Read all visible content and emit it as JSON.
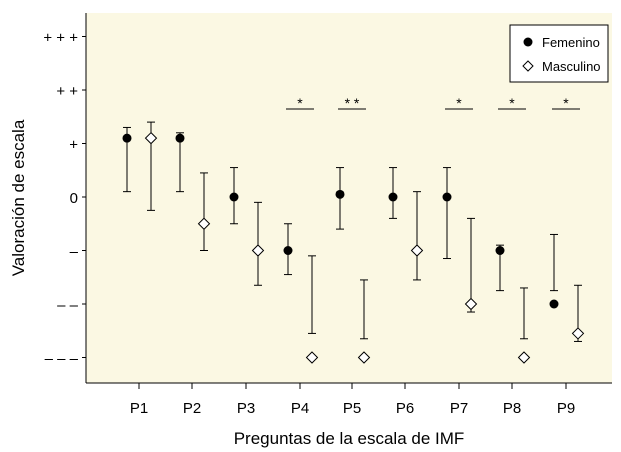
{
  "chart_data": {
    "type": "scatter",
    "xlabel": "Preguntas de la escala de IMF",
    "ylabel": "Valoración de escala",
    "categories": [
      "P1",
      "P2",
      "P3",
      "P4",
      "P5",
      "P6",
      "P7",
      "P8",
      "P9"
    ],
    "y_ticks": [
      {
        "value": 3,
        "label": "+ + +"
      },
      {
        "value": 2,
        "label": "+ +"
      },
      {
        "value": 1,
        "label": "+"
      },
      {
        "value": 0,
        "label": "0"
      },
      {
        "value": -1,
        "label": "–"
      },
      {
        "value": -2,
        "label": "– –"
      },
      {
        "value": -3,
        "label": "– – –"
      }
    ],
    "ylim": [
      -3.4,
      3.6
    ],
    "legend_position": "top-right",
    "grid": false,
    "background_color": "#fbf8e3",
    "series": [
      {
        "name": "Femenino",
        "marker": "filled-circle",
        "values": [
          1.1,
          1.1,
          0.0,
          -1.0,
          0.05,
          0.0,
          0.0,
          -1.0,
          -2.0
        ],
        "low": [
          0.1,
          0.1,
          -0.5,
          -1.45,
          -0.6,
          -0.4,
          -1.15,
          -1.75,
          -1.75
        ],
        "high": [
          1.3,
          1.2,
          0.55,
          -0.5,
          0.55,
          0.55,
          0.55,
          -0.9,
          -0.7
        ]
      },
      {
        "name": "Masculino",
        "marker": "open-diamond",
        "values": [
          1.1,
          -0.5,
          -1.0,
          -3.0,
          -3.0,
          -1.0,
          -2.0,
          -3.0,
          -2.55
        ],
        "low": [
          -0.25,
          -1.0,
          -1.65,
          -2.55,
          -2.65,
          -1.55,
          -2.15,
          -2.65,
          -2.7
        ],
        "high": [
          1.4,
          0.45,
          -0.1,
          -1.1,
          -1.55,
          0.1,
          -0.4,
          -1.7,
          -1.65
        ]
      }
    ],
    "annotations": [
      {
        "category": "P4",
        "text": "*"
      },
      {
        "category": "P5",
        "text": "* *"
      },
      {
        "category": "P7",
        "text": "*"
      },
      {
        "category": "P8",
        "text": "*"
      },
      {
        "category": "P9",
        "text": "*"
      }
    ]
  }
}
